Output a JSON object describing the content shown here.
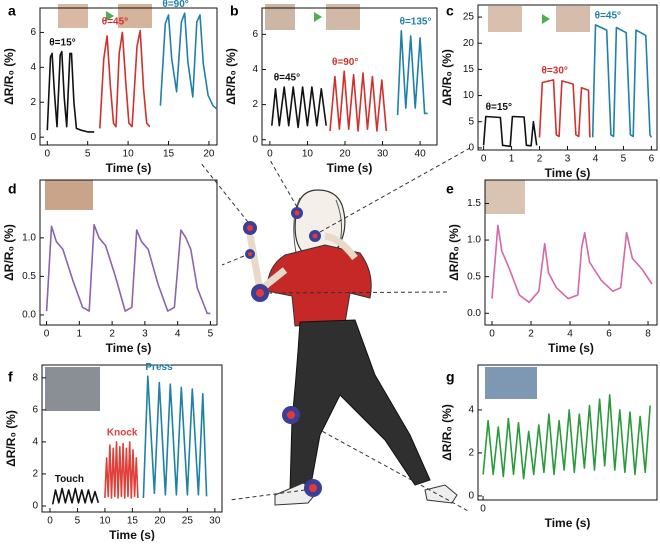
{
  "chart_data": [
    {
      "type": "line",
      "panel": "a",
      "xlabel": "Time (s)",
      "ylabel": "ΔR/R₀ (%)",
      "xlim": [
        -0.9,
        21
      ],
      "ylim": [
        -0.45,
        7.4
      ],
      "xticks": [
        0,
        5,
        10,
        15,
        20
      ],
      "yticks": [
        0,
        2,
        4,
        6
      ],
      "series": [
        {
          "name": "θ=15°",
          "color": "#111111",
          "x": [
            0,
            0.4,
            0.6,
            0.9,
            1.2,
            1.6,
            1.8,
            2.1,
            2.4,
            2.8,
            3.0,
            3.3,
            3.6,
            4.2,
            5.0,
            5.8
          ],
          "values": [
            0.4,
            4.6,
            4.8,
            2.5,
            0.6,
            4.7,
            4.9,
            2.3,
            0.6,
            4.8,
            4.8,
            2.0,
            0.5,
            0.4,
            0.3,
            0.3
          ]
        },
        {
          "name": "θ=45°",
          "color": "#d0312d",
          "x": [
            6.5,
            7.0,
            7.4,
            7.8,
            8.2,
            8.5,
            8.9,
            9.3,
            9.7,
            10.1,
            10.5,
            11.1,
            11.5,
            11.9,
            12.3,
            12.7
          ],
          "values": [
            0.5,
            4.5,
            5.8,
            3.0,
            0.8,
            0.6,
            4.8,
            6.0,
            3.2,
            0.8,
            0.6,
            5.2,
            6.1,
            2.8,
            0.8,
            0.6
          ]
        },
        {
          "name": "θ=90°",
          "color": "#1f80a8",
          "x": [
            14,
            14.6,
            15.0,
            15.4,
            16.0,
            16.6,
            17.0,
            17.4,
            18.0,
            18.5,
            18.9,
            19.3,
            19.9,
            20.5,
            21
          ],
          "values": [
            1.8,
            6.5,
            7.0,
            4.5,
            2.6,
            6.6,
            7.1,
            4.3,
            2.3,
            6.6,
            7.0,
            4.2,
            2.4,
            1.8,
            1.6
          ]
        }
      ]
    },
    {
      "type": "line",
      "panel": "b",
      "xlabel": "Time (s)",
      "ylabel": "ΔR/R₀ (%)",
      "xlim": [
        -2.1,
        44.5
      ],
      "ylim": [
        -0.3,
        7.5
      ],
      "xticks": [
        0,
        10,
        20,
        30,
        40
      ],
      "yticks": [
        0,
        2,
        4,
        6
      ],
      "series": [
        {
          "name": "θ=45°",
          "color": "#111111",
          "x": [
            0.5,
            1.5,
            2.5,
            3.8,
            5.0,
            6.2,
            7.5,
            8.7,
            10.0,
            11.2,
            12.5,
            13.7,
            15.0
          ],
          "values": [
            0.8,
            2.9,
            0.8,
            3.0,
            0.8,
            3.0,
            0.7,
            3.0,
            0.8,
            3.0,
            0.8,
            2.9,
            0.8
          ]
        },
        {
          "name": "θ=90°",
          "color": "#d0312d",
          "x": [
            16,
            17.3,
            18.5,
            19.8,
            21,
            22.3,
            23.5,
            24.8,
            26,
            27.3,
            28.5,
            29.8,
            31
          ],
          "values": [
            0.5,
            3.6,
            0.6,
            3.9,
            0.6,
            3.7,
            0.5,
            3.8,
            0.6,
            3.6,
            0.5,
            3.4,
            0.5
          ]
        },
        {
          "name": "θ=135°",
          "color": "#1f80a8",
          "x": [
            34,
            35,
            36.2,
            37.5,
            38.7,
            40,
            41.2,
            42
          ],
          "values": [
            1.4,
            6.2,
            1.8,
            5.9,
            1.8,
            5.8,
            1.5,
            1.5
          ]
        }
      ]
    },
    {
      "type": "line",
      "panel": "c",
      "xlabel": "Time (s)",
      "ylabel": "ΔR/R₀ (%)",
      "xlim": [
        -0.2,
        6.2
      ],
      "ylim": [
        -0.4,
        27.3
      ],
      "xticks": [
        0,
        1,
        2,
        3,
        4,
        5,
        6
      ],
      "yticks": [
        0,
        5,
        10,
        15,
        20,
        25
      ],
      "series": [
        {
          "name": "θ=15°",
          "color": "#111111",
          "x": [
            0,
            0.08,
            0.6,
            0.68,
            0.95,
            1.03,
            1.45,
            1.53,
            1.7,
            1.78,
            1.9
          ],
          "values": [
            0.5,
            6.0,
            5.8,
            0.5,
            0.3,
            6.0,
            5.9,
            0.5,
            0.4,
            5.0,
            0.5
          ]
        },
        {
          "name": "θ=30°",
          "color": "#d0312d",
          "x": [
            2.0,
            2.1,
            2.5,
            2.6,
            2.7,
            2.8,
            3.2,
            3.3,
            3.4,
            3.5,
            3.75,
            3.8
          ],
          "values": [
            2.0,
            12.5,
            13.0,
            2.5,
            2.2,
            12.8,
            12.2,
            2.5,
            2.2,
            11.5,
            11.0,
            2.0
          ]
        },
        {
          "name": "θ=45°",
          "color": "#1f80a8",
          "x": [
            3.9,
            4.0,
            4.4,
            4.55,
            4.65,
            4.75,
            5.1,
            5.25,
            5.35,
            5.45,
            5.8,
            5.95,
            6.0
          ],
          "values": [
            2.0,
            23.5,
            22.5,
            2.5,
            2.2,
            23.0,
            22.0,
            2.5,
            2.2,
            22.5,
            21.5,
            2.5,
            2.0
          ]
        }
      ]
    },
    {
      "type": "line",
      "panel": "d",
      "xlabel": "Time (s)",
      "ylabel": "ΔR/R₀ (%)",
      "xlim": [
        -0.2,
        5.2
      ],
      "ylim": [
        -0.13,
        1.75
      ],
      "xticks": [
        0,
        1,
        2,
        3,
        4,
        5
      ],
      "yticks": [
        {
          "value": 0,
          "label": "0.0"
        },
        0.5,
        {
          "value": 1,
          "label": "1.0"
        }
      ],
      "series": [
        {
          "color": "#8a64b0",
          "x": [
            0,
            0.15,
            0.3,
            0.5,
            0.8,
            1.1,
            1.3,
            1.45,
            1.6,
            1.8,
            2.1,
            2.4,
            2.6,
            2.75,
            2.9,
            3.1,
            3.4,
            3.7,
            3.9,
            4.1,
            4.25,
            4.4,
            4.6,
            4.9,
            5.0
          ],
          "values": [
            0.05,
            1.15,
            0.95,
            0.85,
            0.45,
            0.1,
            0.05,
            1.17,
            1.0,
            0.9,
            0.5,
            0.05,
            0.1,
            1.1,
            0.95,
            0.85,
            0.4,
            0.05,
            0.1,
            1.1,
            1.0,
            0.85,
            0.35,
            0.02,
            0.02
          ]
        }
      ]
    },
    {
      "type": "line",
      "panel": "e",
      "xlabel": "Time (s)",
      "ylabel": "ΔR/R₀ (%)",
      "xlim": [
        -0.36,
        8.46
      ],
      "ylim": [
        -0.16,
        1.82
      ],
      "xticks": [
        0,
        2,
        4,
        6,
        8
      ],
      "yticks": [
        {
          "value": 0,
          "label": "0.0"
        },
        0.5,
        {
          "value": 1,
          "label": "1.0"
        },
        1.5
      ],
      "series": [
        {
          "color": "#d468a8",
          "x": [
            0,
            0.3,
            0.5,
            0.9,
            1.4,
            1.9,
            2.4,
            2.7,
            2.9,
            3.3,
            3.9,
            4.4,
            4.6,
            4.75,
            5.0,
            5.6,
            6.2,
            6.6,
            6.9,
            7.2,
            7.7,
            8.2
          ],
          "values": [
            0.2,
            1.2,
            0.85,
            0.6,
            0.25,
            0.15,
            0.3,
            0.95,
            0.55,
            0.35,
            0.2,
            0.25,
            0.9,
            1.1,
            0.7,
            0.45,
            0.3,
            0.35,
            1.1,
            0.75,
            0.6,
            0.4
          ]
        }
      ]
    },
    {
      "type": "line",
      "panel": "f",
      "xlabel": "Time (s)",
      "ylabel": "ΔR/R₀ (%)",
      "xlim": [
        -1.45,
        31.3
      ],
      "ylim": [
        -0.375,
        8.8
      ],
      "xticks": [
        0,
        5,
        10,
        15,
        20,
        25,
        30
      ],
      "yticks": [
        0,
        2,
        4,
        6,
        8
      ],
      "series": [
        {
          "name": "Touch",
          "color": "#111111",
          "x": [
            0.5,
            1,
            1.6,
            2.2,
            2.8,
            3.4,
            4,
            4.6,
            5.2,
            5.8,
            6.4,
            7,
            7.6,
            8.2,
            8.8
          ],
          "values": [
            0.1,
            1.0,
            0.2,
            1.1,
            0.2,
            1.0,
            0.2,
            1.1,
            0.2,
            1.0,
            0.2,
            1.0,
            0.2,
            0.9,
            0.2
          ]
        },
        {
          "name": "Knock",
          "color": "#e0403a",
          "x": [
            10,
            10.3,
            10.6,
            10.9,
            11.2,
            11.5,
            11.8,
            12.1,
            12.4,
            12.7,
            13,
            13.3,
            13.6,
            13.9,
            14.2,
            14.5,
            14.8,
            15.1,
            15.4,
            15.7,
            16
          ],
          "values": [
            0.5,
            3.0,
            0.6,
            3.8,
            0.5,
            3.6,
            0.6,
            4.0,
            0.5,
            3.7,
            0.6,
            3.9,
            0.5,
            3.6,
            0.6,
            4.0,
            0.5,
            3.5,
            0.6,
            3.0,
            0.5
          ]
        },
        {
          "name": "Press",
          "color": "#1f80a8",
          "x": [
            17,
            17.8,
            19,
            19.9,
            21,
            21.9,
            23,
            23.9,
            25,
            25.9,
            27,
            27.8,
            28.5
          ],
          "values": [
            0.5,
            8.1,
            0.8,
            7.7,
            0.7,
            7.6,
            0.7,
            7.4,
            0.7,
            7.3,
            0.7,
            7.0,
            0.6
          ]
        }
      ]
    },
    {
      "type": "line",
      "panel": "g",
      "xlabel": "Time (s)",
      "ylabel": "ΔR/R₀ (%)",
      "xlim": [
        -0.3,
        10.3
      ],
      "ylim": [
        -0.19,
        6.09
      ],
      "xticks": [
        0
      ],
      "yticks": [
        0,
        2,
        4
      ],
      "series": [
        {
          "color": "#2a9a3c",
          "x": [
            0,
            0.3,
            0.6,
            0.9,
            1.2,
            1.5,
            1.8,
            2.1,
            2.4,
            2.7,
            3.0,
            3.3,
            3.6,
            3.9,
            4.2,
            4.5,
            4.8,
            5.1,
            5.4,
            5.7,
            6.0,
            6.3,
            6.6,
            6.9,
            7.2,
            7.5,
            7.8,
            8.1,
            8.4,
            8.7,
            9.0,
            9.3,
            9.6,
            9.9
          ],
          "values": [
            1.0,
            3.5,
            1.0,
            3.2,
            0.9,
            3.6,
            1.0,
            3.4,
            0.8,
            3.0,
            1.0,
            3.3,
            1.1,
            3.8,
            1.0,
            3.5,
            1.2,
            4.0,
            1.1,
            3.8,
            1.3,
            4.2,
            1.2,
            4.5,
            1.4,
            4.7,
            1.2,
            4.0,
            1.1,
            3.9,
            1.0,
            3.7,
            1.1,
            4.2
          ]
        }
      ]
    }
  ]
}
